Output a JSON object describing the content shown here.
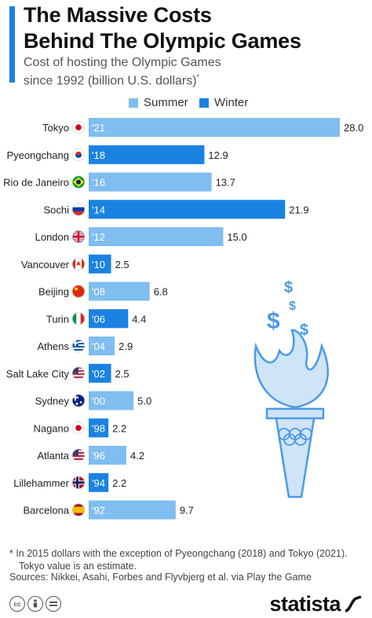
{
  "header": {
    "title_line1": "The Massive Costs",
    "title_line2": "Behind The Olympic Games",
    "subtitle_line1": "Cost of hosting the Olympic Games",
    "subtitle_line2": "since 1992 (billion U.S. dollars)",
    "subtitle_mark": "*"
  },
  "legend": {
    "summer": "Summer",
    "winter": "Winter"
  },
  "colors": {
    "summer": "#80bdf0",
    "winter": "#1a82e2",
    "accent": "#1a82e2",
    "torch_fill": "#cfe4f7",
    "torch_stroke": "#4a9ae6"
  },
  "chart_data": {
    "type": "bar",
    "orientation": "horizontal",
    "xlim": [
      0,
      28
    ],
    "grid": false,
    "legend_position": "top-center",
    "categories": [
      "Tokyo",
      "Pyeongchang",
      "Rio de Janeiro",
      "Sochi",
      "London",
      "Vancouver",
      "Beijing",
      "Turin",
      "Athens",
      "Salt Lake City",
      "Sydney",
      "Nagano",
      "Atlanta",
      "Lillehammer",
      "Barcelona"
    ],
    "years": [
      "'21",
      "'18",
      "'16",
      "'14",
      "'12",
      "'10",
      "'08",
      "'06",
      "'04",
      "'02",
      "'00",
      "'98",
      "'96",
      "'94",
      "'92"
    ],
    "season": [
      "summer",
      "winter",
      "summer",
      "winter",
      "summer",
      "winter",
      "summer",
      "winter",
      "summer",
      "winter",
      "summer",
      "winter",
      "summer",
      "winter",
      "summer"
    ],
    "values": [
      28.0,
      12.9,
      13.7,
      21.9,
      15.0,
      2.5,
      6.8,
      4.4,
      2.9,
      2.5,
      5.0,
      2.2,
      4.2,
      2.2,
      9.7
    ],
    "value_labels": [
      "28.0",
      "12.9",
      "13.7",
      "21.9",
      "15.0",
      "2.5",
      "6.8",
      "4.4",
      "2.9",
      "2.5",
      "5.0",
      "2.2",
      "4.2",
      "2.2",
      "9.7"
    ],
    "flags": [
      "japan-flag-icon",
      "south-korea-flag-icon",
      "brazil-flag-icon",
      "russia-flag-icon",
      "uk-flag-icon",
      "canada-flag-icon",
      "china-flag-icon",
      "italy-flag-icon",
      "greece-flag-icon",
      "usa-flag-icon",
      "australia-flag-icon",
      "japan-flag-icon",
      "usa-flag-icon",
      "norway-flag-icon",
      "spain-flag-icon"
    ]
  },
  "footer": {
    "footnote_line1": "* In 2015 dollars with the exception of Pyeongchang (2018) and Tokyo (2021).",
    "footnote_line2": "Tokyo value is an estimate.",
    "sources": "Sources: Nikkei, Asahi, Forbes and Flyvbjerg et al. via Play the Game",
    "license_icons": [
      "cc-icon",
      "attribution-icon",
      "no-derivatives-icon"
    ],
    "brand": "statista"
  }
}
